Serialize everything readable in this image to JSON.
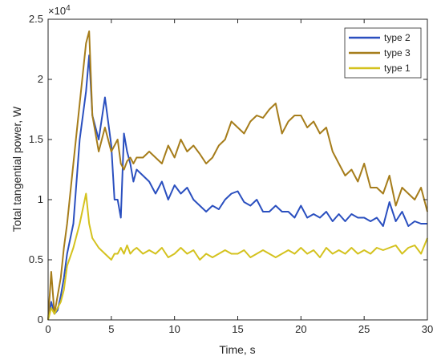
{
  "chart_data": {
    "type": "line",
    "xlabel": "Time, s",
    "ylabel": "Total tangential power, W",
    "y_exponent_label": "×10",
    "y_exponent_power": "4",
    "xlim": [
      0,
      30
    ],
    "ylim": [
      0,
      2.5
    ],
    "x_ticks": [
      0,
      5,
      10,
      15,
      20,
      25,
      30
    ],
    "x_tick_labels": [
      "0",
      "5",
      "10",
      "15",
      "20",
      "25",
      "30"
    ],
    "y_ticks": [
      0,
      0.5,
      1,
      1.5,
      2,
      2.5
    ],
    "y_tick_labels": [
      "0",
      "0.5",
      "1",
      "1.5",
      "2",
      "2.5"
    ],
    "grid": false,
    "legend_position": "top-right",
    "series": [
      {
        "name": "type 2",
        "color": "#2a4fbf",
        "x": [
          0,
          0.25,
          0.5,
          0.75,
          1,
          1.25,
          1.5,
          2,
          2.5,
          3,
          3.25,
          3.5,
          4,
          4.5,
          5,
          5.25,
          5.5,
          5.75,
          6,
          6.25,
          6.5,
          6.75,
          7,
          7.5,
          8,
          8.5,
          9,
          9.5,
          10,
          10.5,
          11,
          11.5,
          12,
          12.5,
          13,
          13.5,
          14,
          14.5,
          15,
          15.5,
          16,
          16.5,
          17,
          17.5,
          18,
          18.5,
          19,
          19.5,
          20,
          20.5,
          21,
          21.5,
          22,
          22.5,
          23,
          23.5,
          24,
          24.5,
          25,
          25.5,
          26,
          26.5,
          27,
          27.5,
          28,
          28.5,
          29,
          29.5,
          30
        ],
        "y": [
          0,
          0.15,
          0.05,
          0.08,
          0.2,
          0.35,
          0.55,
          0.8,
          1.5,
          1.9,
          2.2,
          1.7,
          1.5,
          1.85,
          1.45,
          1.0,
          1.0,
          0.85,
          1.55,
          1.4,
          1.3,
          1.15,
          1.25,
          1.2,
          1.15,
          1.05,
          1.15,
          1.0,
          1.12,
          1.05,
          1.1,
          1.0,
          0.95,
          0.9,
          0.95,
          0.92,
          1.0,
          1.05,
          1.07,
          0.98,
          0.95,
          1.0,
          0.9,
          0.9,
          0.95,
          0.9,
          0.9,
          0.85,
          0.95,
          0.85,
          0.88,
          0.85,
          0.9,
          0.82,
          0.88,
          0.82,
          0.88,
          0.85,
          0.85,
          0.82,
          0.85,
          0.78,
          0.98,
          0.82,
          0.9,
          0.78,
          0.82,
          0.8,
          0.8
        ]
      },
      {
        "name": "type 3",
        "color": "#a67d1b",
        "x": [
          0,
          0.25,
          0.5,
          0.75,
          1,
          1.25,
          1.5,
          2,
          2.5,
          3,
          3.25,
          3.5,
          4,
          4.5,
          5,
          5.25,
          5.5,
          5.75,
          6,
          6.25,
          6.5,
          6.75,
          7,
          7.5,
          8,
          8.5,
          9,
          9.5,
          10,
          10.5,
          11,
          11.5,
          12,
          12.5,
          13,
          13.5,
          14,
          14.5,
          15,
          15.5,
          16,
          16.5,
          17,
          17.5,
          18,
          18.5,
          19,
          19.5,
          20,
          20.5,
          21,
          21.5,
          22,
          22.5,
          23,
          23.5,
          24,
          24.5,
          25,
          25.5,
          26,
          26.5,
          27,
          27.5,
          28,
          28.5,
          29,
          29.5,
          30
        ],
        "y": [
          0,
          0.4,
          0.05,
          0.2,
          0.35,
          0.6,
          0.8,
          1.3,
          1.8,
          2.3,
          2.4,
          1.7,
          1.4,
          1.6,
          1.4,
          1.45,
          1.5,
          1.3,
          1.25,
          1.32,
          1.35,
          1.3,
          1.35,
          1.35,
          1.4,
          1.35,
          1.3,
          1.45,
          1.35,
          1.5,
          1.4,
          1.45,
          1.38,
          1.3,
          1.35,
          1.45,
          1.5,
          1.65,
          1.6,
          1.55,
          1.65,
          1.7,
          1.68,
          1.75,
          1.8,
          1.55,
          1.65,
          1.7,
          1.7,
          1.6,
          1.65,
          1.55,
          1.6,
          1.4,
          1.3,
          1.2,
          1.25,
          1.15,
          1.3,
          1.1,
          1.1,
          1.05,
          1.2,
          0.95,
          1.1,
          1.05,
          1.0,
          1.1,
          0.9
        ]
      },
      {
        "name": "type 1",
        "color": "#d4c21e",
        "x": [
          0,
          0.25,
          0.5,
          0.75,
          1,
          1.25,
          1.5,
          2,
          2.5,
          3,
          3.25,
          3.5,
          4,
          4.5,
          5,
          5.25,
          5.5,
          5.75,
          6,
          6.25,
          6.5,
          6.75,
          7,
          7.5,
          8,
          8.5,
          9,
          9.5,
          10,
          10.5,
          11,
          11.5,
          12,
          12.5,
          13,
          13.5,
          14,
          14.5,
          15,
          15.5,
          16,
          16.5,
          17,
          17.5,
          18,
          18.5,
          19,
          19.5,
          20,
          20.5,
          21,
          21.5,
          22,
          22.5,
          23,
          23.5,
          24,
          24.5,
          25,
          25.5,
          26,
          26.5,
          27,
          27.5,
          28,
          28.5,
          29,
          29.5,
          30
        ],
        "y": [
          0,
          0.1,
          0.05,
          0.1,
          0.15,
          0.25,
          0.45,
          0.6,
          0.8,
          1.05,
          0.8,
          0.68,
          0.6,
          0.55,
          0.5,
          0.55,
          0.55,
          0.6,
          0.55,
          0.62,
          0.55,
          0.58,
          0.6,
          0.55,
          0.58,
          0.55,
          0.6,
          0.52,
          0.55,
          0.6,
          0.55,
          0.58,
          0.5,
          0.55,
          0.52,
          0.55,
          0.58,
          0.55,
          0.55,
          0.58,
          0.52,
          0.55,
          0.58,
          0.55,
          0.52,
          0.55,
          0.58,
          0.55,
          0.6,
          0.55,
          0.58,
          0.52,
          0.6,
          0.55,
          0.58,
          0.55,
          0.6,
          0.55,
          0.58,
          0.55,
          0.6,
          0.58,
          0.6,
          0.62,
          0.55,
          0.6,
          0.62,
          0.55,
          0.68
        ]
      }
    ]
  }
}
